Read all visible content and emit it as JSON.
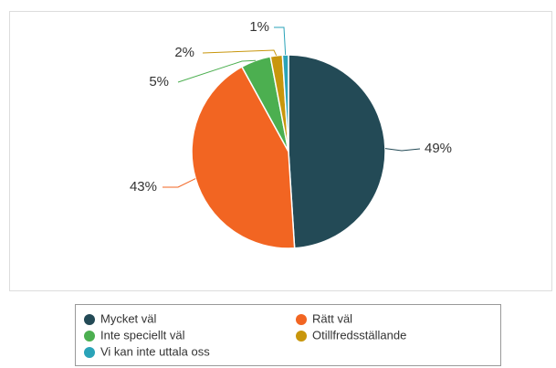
{
  "chart_data": {
    "type": "pie",
    "categories": [
      "Mycket väl",
      "Rätt väl",
      "Inte speciellt väl",
      "Otillfredsställande",
      "Vi kan inte uttala oss"
    ],
    "values": [
      49,
      43,
      5,
      2,
      1
    ],
    "value_labels": [
      "49%",
      "43%",
      "5%",
      "2%",
      "1%"
    ],
    "colors": [
      "#234a56",
      "#f26522",
      "#4caf50",
      "#c8960c",
      "#2aa3b8"
    ]
  }
}
